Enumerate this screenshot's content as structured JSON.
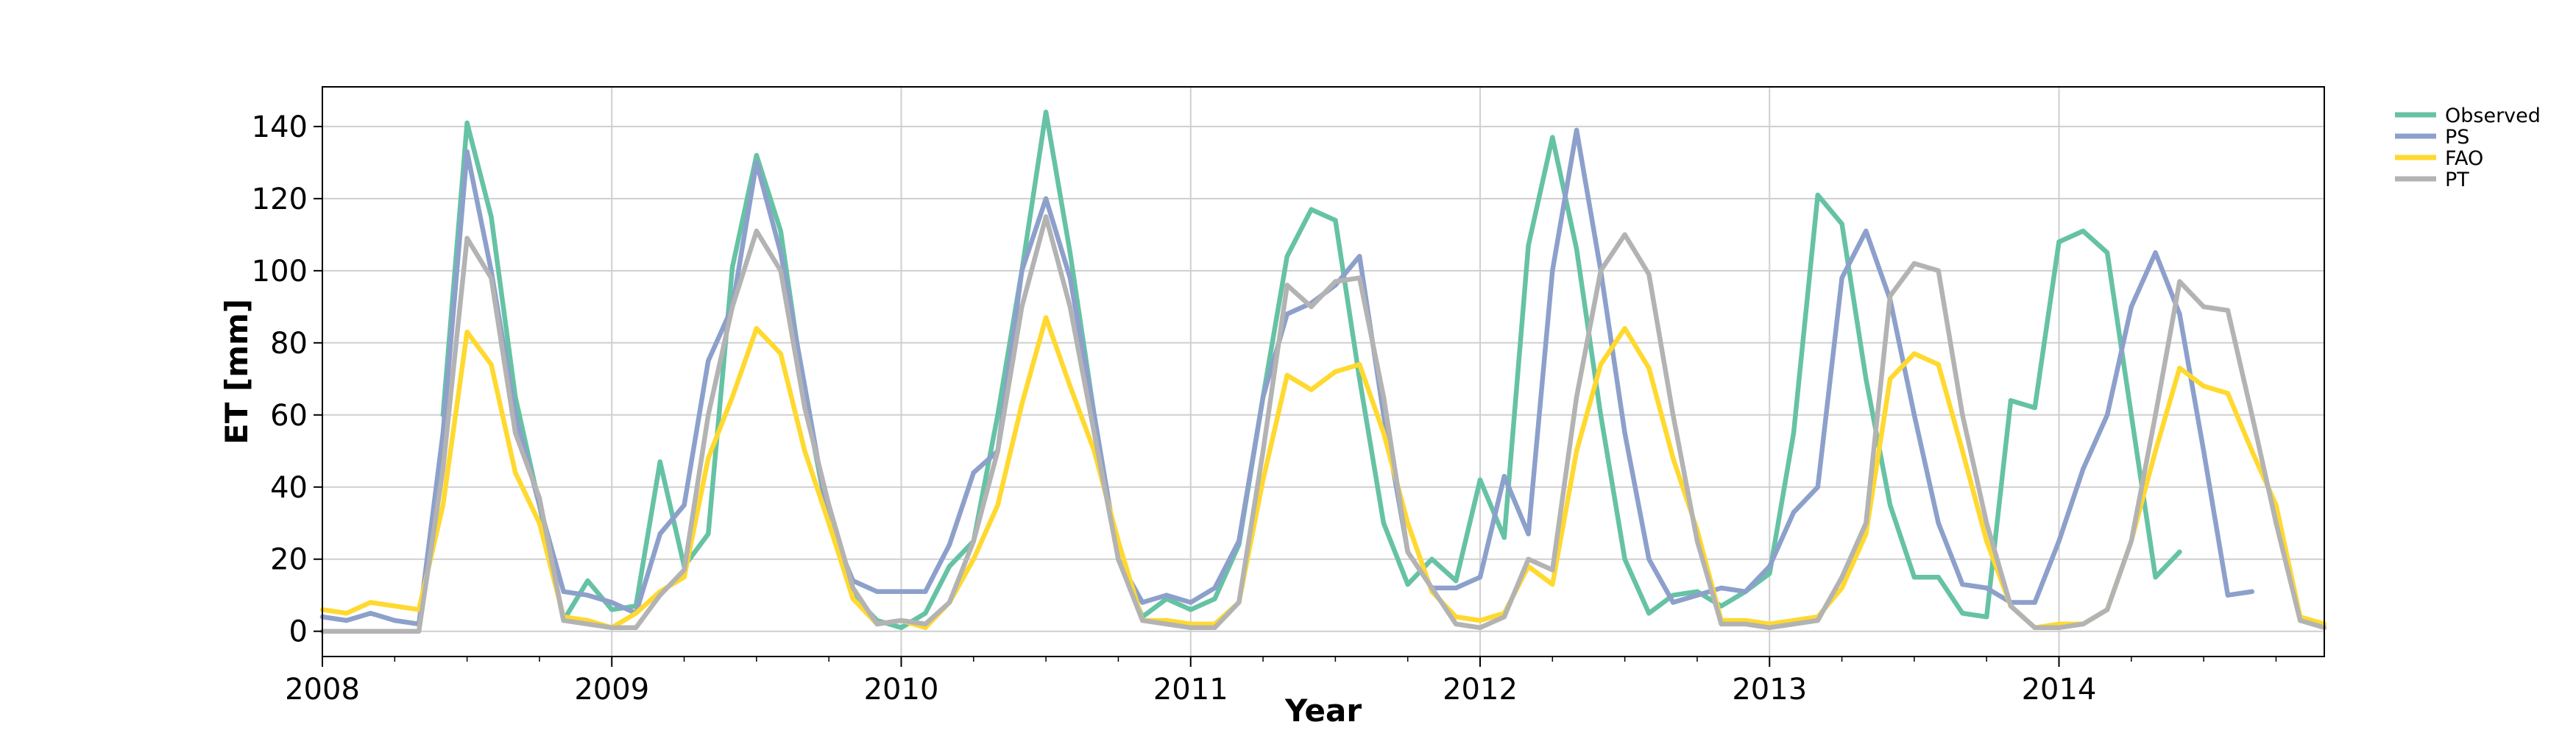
{
  "chart_data": {
    "type": "line",
    "xlabel": "Year",
    "ylabel": "ET [mm]",
    "x_start": "2008-01",
    "x_frequency": "monthly",
    "xlim": [
      "2008-01",
      "2014-12"
    ],
    "ylim": [
      -7,
      151
    ],
    "x_ticks": [
      "2008",
      "2009",
      "2010",
      "2011",
      "2012",
      "2013",
      "2014"
    ],
    "y_ticks": [
      0,
      20,
      40,
      60,
      80,
      100,
      120,
      140
    ],
    "grid": true,
    "legend_position": "outside top-right",
    "series": [
      {
        "name": "Observed",
        "color": "#66c2a5",
        "values": [
          null,
          null,
          null,
          null,
          null,
          60,
          141,
          115,
          65,
          35,
          3,
          14,
          6,
          7,
          47,
          18,
          27,
          101,
          132,
          111,
          65,
          30,
          10,
          3,
          1,
          5,
          18,
          25,
          60,
          100,
          144,
          105,
          60,
          20,
          4,
          9,
          6,
          9,
          24,
          65,
          104,
          117,
          114,
          70,
          30,
          13,
          20,
          14,
          42,
          26,
          107,
          137,
          106,
          60,
          20,
          5,
          10,
          11,
          7,
          11,
          16,
          55,
          121,
          113,
          70,
          35,
          15,
          15,
          5,
          4,
          64,
          62,
          108,
          111,
          105,
          60,
          15,
          22
        ]
      },
      {
        "name": "PS",
        "color": "#8da0cb",
        "values": [
          4,
          3,
          5,
          3,
          2,
          55,
          133,
          100,
          60,
          35,
          11,
          10,
          8,
          5,
          27,
          35,
          75,
          90,
          130,
          105,
          68,
          30,
          14,
          11,
          11,
          11,
          24,
          44,
          50,
          100,
          120,
          98,
          60,
          20,
          8,
          10,
          8,
          12,
          25,
          65,
          88,
          91,
          96,
          104,
          60,
          22,
          12,
          12,
          15,
          43,
          27,
          100,
          139,
          100,
          55,
          20,
          8,
          10,
          12,
          11,
          18,
          33,
          40,
          98,
          111,
          92,
          60,
          30,
          13,
          12,
          8,
          8,
          25,
          45,
          60,
          90,
          105,
          88,
          50,
          10,
          11
        ]
      },
      {
        "name": "FAO",
        "color": "#ffd92f",
        "values": [
          6,
          5,
          8,
          7,
          6,
          35,
          83,
          74,
          44,
          30,
          4,
          3,
          1,
          5,
          11,
          15,
          48,
          65,
          84,
          77,
          50,
          30,
          9,
          2,
          3,
          1,
          8,
          20,
          35,
          63,
          87,
          68,
          50,
          25,
          3,
          3,
          2,
          2,
          8,
          42,
          71,
          67,
          72,
          74,
          55,
          30,
          11,
          4,
          3,
          5,
          18,
          13,
          50,
          74,
          84,
          73,
          48,
          28,
          3,
          3,
          2,
          3,
          4,
          12,
          27,
          70,
          77,
          74,
          50,
          25,
          7,
          1,
          2,
          2,
          6,
          25,
          50,
          73,
          68,
          66,
          50,
          35,
          4,
          2
        ]
      },
      {
        "name": "PT",
        "color": "#b3b3b3",
        "values": [
          0,
          0,
          0,
          0,
          0,
          45,
          109,
          98,
          55,
          37,
          3,
          2,
          1,
          1,
          10,
          17,
          60,
          90,
          111,
          100,
          62,
          35,
          12,
          2,
          3,
          2,
          8,
          25,
          50,
          90,
          115,
          90,
          55,
          20,
          3,
          2,
          1,
          1,
          8,
          50,
          96,
          90,
          97,
          98,
          65,
          22,
          12,
          2,
          1,
          4,
          20,
          17,
          65,
          100,
          110,
          99,
          60,
          25,
          2,
          2,
          1,
          2,
          3,
          15,
          30,
          93,
          102,
          100,
          60,
          30,
          7,
          1,
          1,
          2,
          6,
          25,
          60,
          97,
          90,
          89,
          60,
          30,
          3,
          1
        ]
      }
    ]
  }
}
